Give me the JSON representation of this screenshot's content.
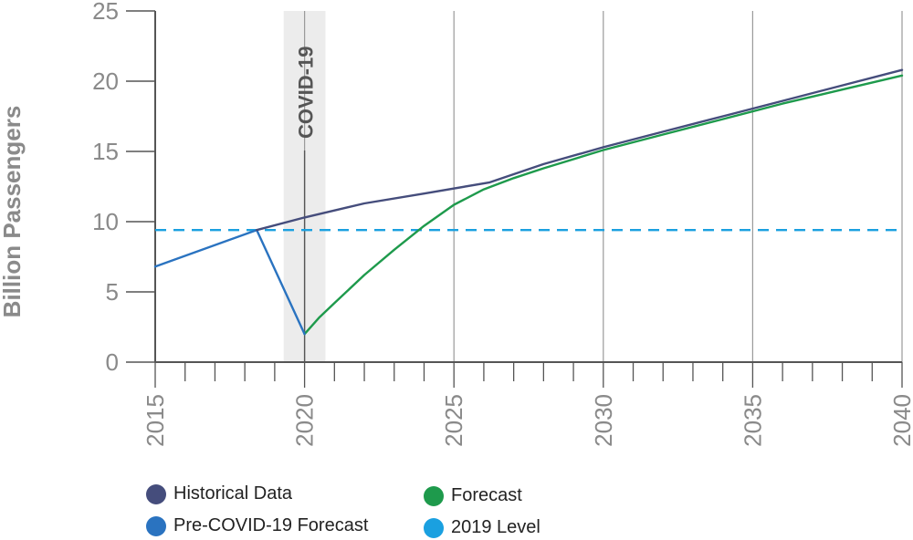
{
  "chart_data": {
    "type": "line",
    "ylabel": "Billion Passengers",
    "xlim": [
      2015,
      2040
    ],
    "ylim": [
      0,
      25
    ],
    "x_ticks": [
      "2015",
      "2020",
      "2025",
      "2030",
      "2035",
      "2040"
    ],
    "y_ticks": [
      "0",
      "5",
      "10",
      "15",
      "20",
      "25"
    ],
    "annotation": {
      "label": "COVID-19",
      "x_from": 2019.3,
      "x_to": 2020.7,
      "x_line": 2020
    },
    "series": [
      {
        "name": "Historical Data",
        "color": "#454d7c",
        "x": [
          2018.4,
          2020,
          2022,
          2024,
          2026.2,
          2028,
          2030,
          2032,
          2034,
          2036,
          2038,
          2040
        ],
        "y": [
          9.4,
          10.3,
          11.3,
          12.0,
          12.8,
          14.1,
          15.3,
          16.4,
          17.5,
          18.6,
          19.7,
          20.8
        ]
      },
      {
        "name": "Pre-COVID-19 Forecast",
        "color": "#2a73c0",
        "x": [
          2015,
          2018.4,
          2020
        ],
        "y": [
          6.8,
          9.4,
          2.0
        ]
      },
      {
        "name": "Forecast",
        "color": "#1e9a4c",
        "x": [
          2020,
          2020.5,
          2021,
          2022,
          2023,
          2024,
          2025,
          2026,
          2027,
          2028,
          2030,
          2032,
          2034,
          2036,
          2038,
          2040
        ],
        "y": [
          2.0,
          3.2,
          4.2,
          6.2,
          8.0,
          9.7,
          11.2,
          12.3,
          13.1,
          13.8,
          15.1,
          16.2,
          17.3,
          18.4,
          19.4,
          20.4
        ]
      },
      {
        "name": "2019 Level",
        "color": "#1aa0e0",
        "style": "dashed",
        "x": [
          2015,
          2040
        ],
        "y": [
          9.4,
          9.4
        ]
      }
    ],
    "legend": [
      {
        "label": "Historical Data",
        "color": "#454d7c"
      },
      {
        "label": "Forecast",
        "color": "#1e9a4c"
      },
      {
        "label": "Pre-COVID-19 Forecast",
        "color": "#2a73c0"
      },
      {
        "label": "2019 Level",
        "color": "#1aa0e0"
      }
    ],
    "grid": "vertical",
    "legend_position": "bottom"
  }
}
